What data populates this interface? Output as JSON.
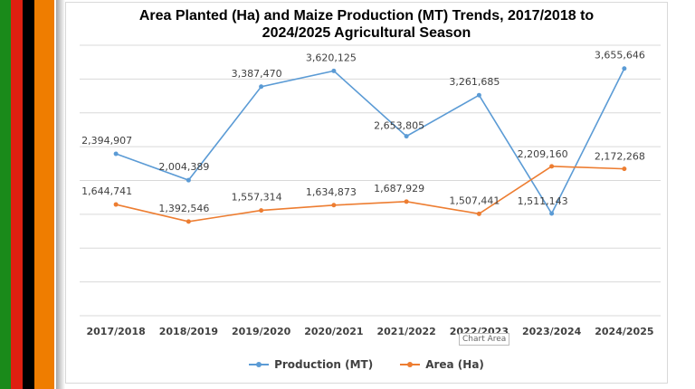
{
  "colors": {
    "flag": [
      "#1a8a1a",
      "#de2010",
      "#000000",
      "#ef7d00"
    ],
    "production": "#5b9bd5",
    "area": "#ed7d31",
    "grid": "#d9d9d9"
  },
  "title_line1": "Area Planted (Ha) and Maize Production (MT)  Trends, 2017/2018 to",
  "title_line2": "2024/2025 Agricultural Season",
  "tooltip": "Chart Area",
  "chart_data": {
    "type": "line",
    "title": "Area Planted (Ha) and Maize Production (MT)  Trends, 2017/2018 to 2024/2025 Agricultural Season",
    "categories": [
      "2017/2018",
      "2018/2019",
      "2019/2020",
      "2020/2021",
      "2021/2022",
      "2022/2023",
      "2023/2024",
      "2024/2025"
    ],
    "series": [
      {
        "name": "Production (MT)",
        "values": [
          2394907,
          2004389,
          3387470,
          3620125,
          2653805,
          3261685,
          1511143,
          3655646
        ],
        "labels": [
          "2,394,907",
          "2,004,389",
          "3,387,470",
          "3,620,125",
          "2,653,805",
          "3,261,685",
          "1,511,143",
          "3,655,646"
        ]
      },
      {
        "name": "Area (Ha)",
        "values": [
          1644741,
          1392546,
          1557314,
          1634873,
          1687929,
          1507441,
          2209160,
          2172268
        ],
        "labels": [
          "1,644,741",
          "1,392,546",
          "1,557,314",
          "1,634,873",
          "1,687,929",
          "1,507,441",
          "2,209,160",
          "2,172,268"
        ]
      }
    ],
    "ylim": [
      0,
      4000000
    ],
    "grid": true,
    "legend": "bottom"
  }
}
